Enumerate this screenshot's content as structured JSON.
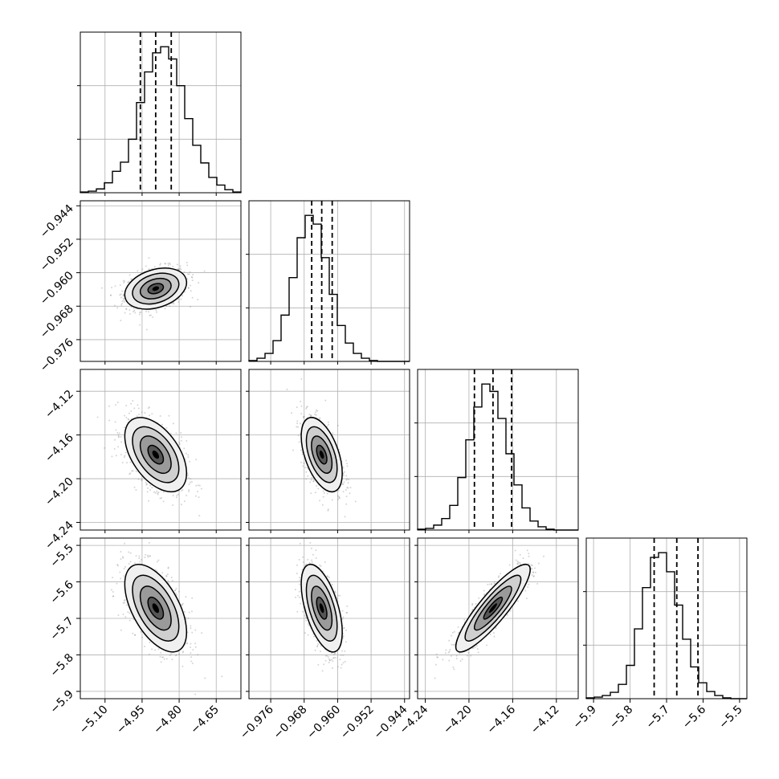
{
  "chart_data": {
    "type": "corner",
    "title": "",
    "params": [
      {
        "range": [
          -5.2,
          -4.55
        ],
        "ticks": [
          -5.1,
          -4.95,
          -4.8,
          -4.65
        ],
        "tick_labels": [
          "−5.10",
          "−4.95",
          "−4.80",
          "−4.65"
        ],
        "median": -4.895,
        "q16": -4.957,
        "q84": -4.832
      },
      {
        "range": [
          -0.9812,
          -0.9428
        ],
        "ticks": [
          -0.976,
          -0.968,
          -0.96,
          -0.952,
          -0.944
        ],
        "tick_labels": [
          "−0.976",
          "−0.968",
          "−0.960",
          "−0.952",
          "−0.944"
        ],
        "median": -0.9638,
        "q16": -0.9662,
        "q84": -0.9613
      },
      {
        "range": [
          -4.247,
          -4.1
        ],
        "ticks": [
          -4.24,
          -4.2,
          -4.16,
          -4.12
        ],
        "tick_labels": [
          "−4.24",
          "−4.20",
          "−4.16",
          "−4.12"
        ],
        "median": -4.178,
        "q16": -4.195,
        "q84": -4.161
      },
      {
        "range": [
          -5.92,
          -5.48
        ],
        "ticks": [
          -5.9,
          -5.8,
          -5.7,
          -5.6,
          -5.5
        ],
        "tick_labels": [
          "−5.9",
          "−5.8",
          "−5.7",
          "−5.6",
          "−5.5"
        ],
        "median": -5.672,
        "q16": -5.734,
        "q84": -5.614
      }
    ],
    "histograms": [
      [
        1,
        2,
        5,
        13,
        28,
        40,
        70,
        118,
        158,
        183,
        191,
        175,
        140,
        97,
        62,
        39,
        20,
        10,
        4,
        1
      ],
      [
        1,
        4,
        10,
        26,
        58,
        105,
        155,
        183,
        172,
        130,
        84,
        45,
        23,
        10,
        4,
        1,
        0,
        0,
        0,
        0
      ],
      [
        1,
        2,
        6,
        14,
        30,
        64,
        110,
        150,
        178,
        169,
        136,
        93,
        55,
        27,
        11,
        4,
        1,
        0,
        0,
        0
      ],
      [
        1,
        2,
        4,
        8,
        18,
        42,
        88,
        140,
        178,
        184,
        160,
        118,
        75,
        40,
        20,
        9,
        4,
        1,
        0,
        0
      ]
    ],
    "correlations": {
      "1-0": 0.3,
      "2-0": -0.5,
      "2-1": -0.5,
      "3-0": -0.55,
      "3-1": -0.55,
      "3-2": 0.88
    },
    "contour_levels_sigma": [
      0.5,
      1.0,
      1.5,
      2.0
    ],
    "xlabel": "",
    "ylabel": "",
    "grid": true,
    "legend": "none"
  }
}
